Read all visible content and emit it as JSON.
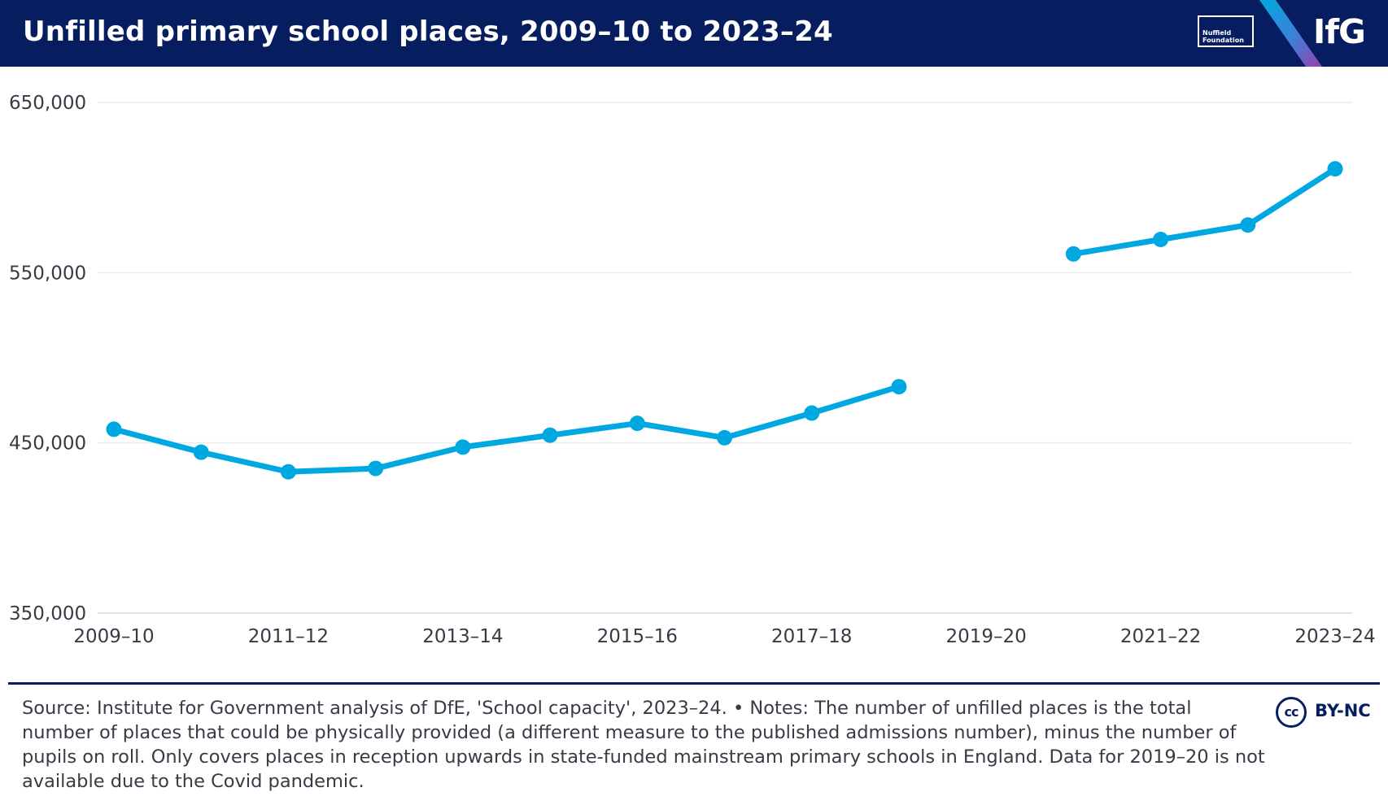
{
  "header": {
    "title": "Unfilled primary school places, 2009–10 to 2023–24",
    "partner_logo_line1": "Nuffield",
    "partner_logo_line2": "Foundation",
    "brand_logo": "IfG",
    "background_color": "#061e60"
  },
  "chart_data": {
    "type": "line",
    "title": "Unfilled primary school places, 2009–10 to 2023–24",
    "xlabel": "",
    "ylabel": "",
    "categories": [
      "2009–10",
      "2010–11",
      "2011–12",
      "2012–13",
      "2013–14",
      "2014–15",
      "2015–16",
      "2016–17",
      "2017–18",
      "2018–19",
      "2019–20",
      "2020–21",
      "2021–22",
      "2022–23",
      "2023–24"
    ],
    "x_tick_labels": [
      "2009–10",
      "2011–12",
      "2013–14",
      "2015–16",
      "2017–18",
      "2019–20",
      "2021–22",
      "2023–24"
    ],
    "series": [
      {
        "name": "Unfilled places",
        "color": "#00a8e1",
        "values": [
          458000,
          444500,
          433000,
          435000,
          447500,
          454500,
          461500,
          453000,
          467500,
          483000,
          null,
          561000,
          569500,
          578000,
          611000
        ]
      }
    ],
    "ylim": [
      350000,
      650000
    ],
    "yticks": [
      350000,
      450000,
      550000,
      650000
    ],
    "y_tick_labels": [
      "350,000",
      "450,000",
      "550,000",
      "650,000"
    ],
    "grid": true,
    "legend": "none",
    "gap_note": "2019–20 not available"
  },
  "footer": {
    "source_notes": "Source: Institute for Government analysis of DfE, 'School capacity', 2023–24. • Notes: The number of unfilled places is the total number of places that could be physically provided (a different measure to the published admissions number), minus the number of pupils on roll. Only covers places in reception upwards in state-funded mainstream primary schools in England. Data for 2019–20 is not available due to the Covid pandemic.",
    "license_symbol": "cc",
    "license_label": "BY-NC"
  }
}
